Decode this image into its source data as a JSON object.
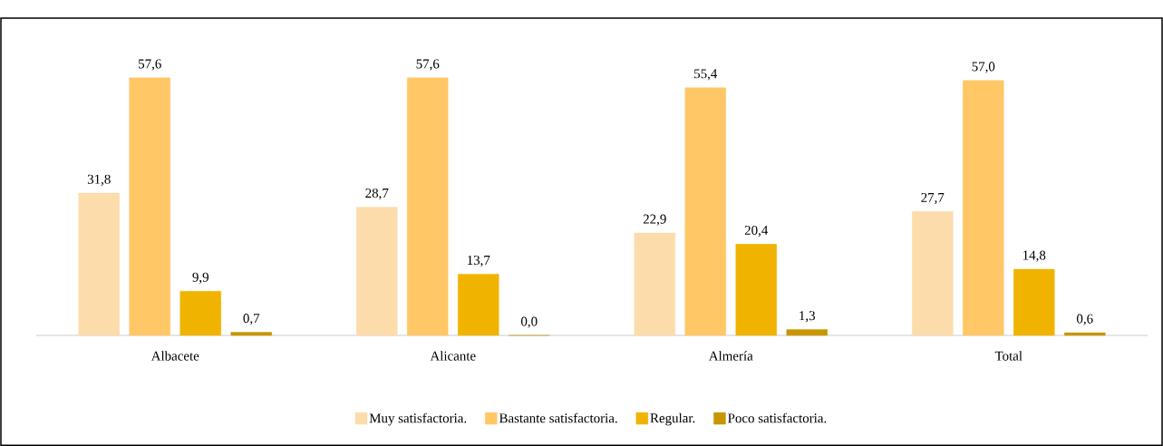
{
  "chart_data": {
    "type": "bar",
    "categories": [
      "Albacete",
      "Alicante",
      "Almería",
      "Total"
    ],
    "series": [
      {
        "name": "Muy satisfactoria.",
        "color": "#fddcab",
        "values": [
          31.8,
          28.7,
          22.9,
          27.7
        ],
        "value_labels": [
          "31,8",
          "28,7",
          "22,9",
          "27,7"
        ]
      },
      {
        "name": "Bastante satisfactoria.",
        "color": "#ffc766",
        "values": [
          57.6,
          57.6,
          55.4,
          57.0
        ],
        "value_labels": [
          "57,6",
          "57,6",
          "55,4",
          "57,0"
        ]
      },
      {
        "name": "Regular.",
        "color": "#f0b400",
        "values": [
          9.9,
          13.7,
          20.4,
          14.8
        ],
        "value_labels": [
          "9,9",
          "13,7",
          "20,4",
          "14,8"
        ]
      },
      {
        "name": "Poco satisfactoria.",
        "color": "#c89600",
        "values": [
          0.7,
          0.0,
          1.3,
          0.6
        ],
        "value_labels": [
          "0,7",
          "0,0",
          "1,3",
          "0,6"
        ]
      }
    ],
    "legend": "bottom"
  }
}
